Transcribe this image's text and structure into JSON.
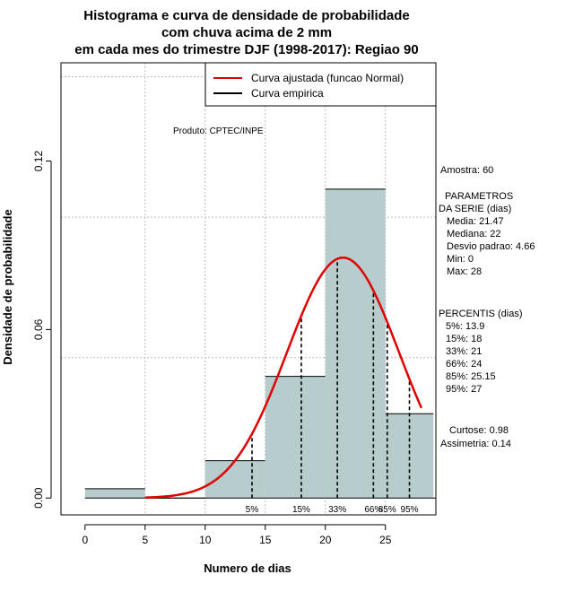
{
  "chart_data": {
    "type": "bar",
    "title_lines": [
      "Histograma e curva de densidade de probabilidade",
      "com chuva acima de 2 mm",
      "em cada mes do trimestre DJF (1998-2017): Regiao 90"
    ],
    "xlabel": "Numero de dias",
    "ylabel": "Densidade de probabilidade",
    "xlim": [
      -2,
      29.2
    ],
    "ylim": [
      -0.006,
      0.155
    ],
    "xticks": [
      0,
      5,
      10,
      15,
      20,
      25
    ],
    "yticks": [
      0.0,
      0.06,
      0.12
    ],
    "ytick_labels": [
      "0.00",
      "0.06",
      "0.12"
    ],
    "grid_x": [
      5,
      10,
      15,
      20,
      25
    ],
    "grid_y": [
      0.05,
      0.1,
      0.15
    ],
    "bins": [
      {
        "x0": 0,
        "x1": 5,
        "density": 0.0033
      },
      {
        "x0": 5,
        "x1": 10,
        "density": 0.0
      },
      {
        "x0": 10,
        "x1": 15,
        "density": 0.0133
      },
      {
        "x0": 15,
        "x1": 20,
        "density": 0.0433
      },
      {
        "x0": 20,
        "x1": 25,
        "density": 0.11
      },
      {
        "x0": 25,
        "x1": 29,
        "density": 0.03
      }
    ],
    "normal_fit": {
      "mean": 21.47,
      "sd": 4.66,
      "x_start": 5,
      "x_end": 28
    },
    "percentile_lines": [
      {
        "label": "5%",
        "x": 13.9
      },
      {
        "label": "15%",
        "x": 18
      },
      {
        "label": "33%",
        "x": 21
      },
      {
        "label": "66%",
        "x": 24
      },
      {
        "label": "85%",
        "x": 25.15
      },
      {
        "label": "95%",
        "x": 27
      }
    ],
    "legend": [
      {
        "label": "Curva ajustada (funcao Normal)",
        "color": "#e00000"
      },
      {
        "label": "Curva empirica",
        "color": "#000000"
      }
    ],
    "bar_color": "#b7cdcd",
    "fit_color": "#e00000",
    "product_label": "Produto: CPTEC/INPE",
    "stats": {
      "amostra": "Amostra: 60",
      "param_header_1": "PARAMETROS",
      "param_header_2": "DA SERIE (dias)",
      "params": [
        "Media: 21.47",
        "Mediana: 22",
        "Desvio padrao: 4.66",
        "Min: 0",
        "Max: 28"
      ],
      "percentis_header": "PERCENTIS (dias)",
      "percentis": [
        "5%: 13.9",
        "15%: 18",
        "33%: 21",
        "66%: 24",
        "85%: 25.15",
        "95%: 27"
      ],
      "curtose": "Curtose: 0.98",
      "assimetria": "Assimetria: 0.14"
    }
  }
}
